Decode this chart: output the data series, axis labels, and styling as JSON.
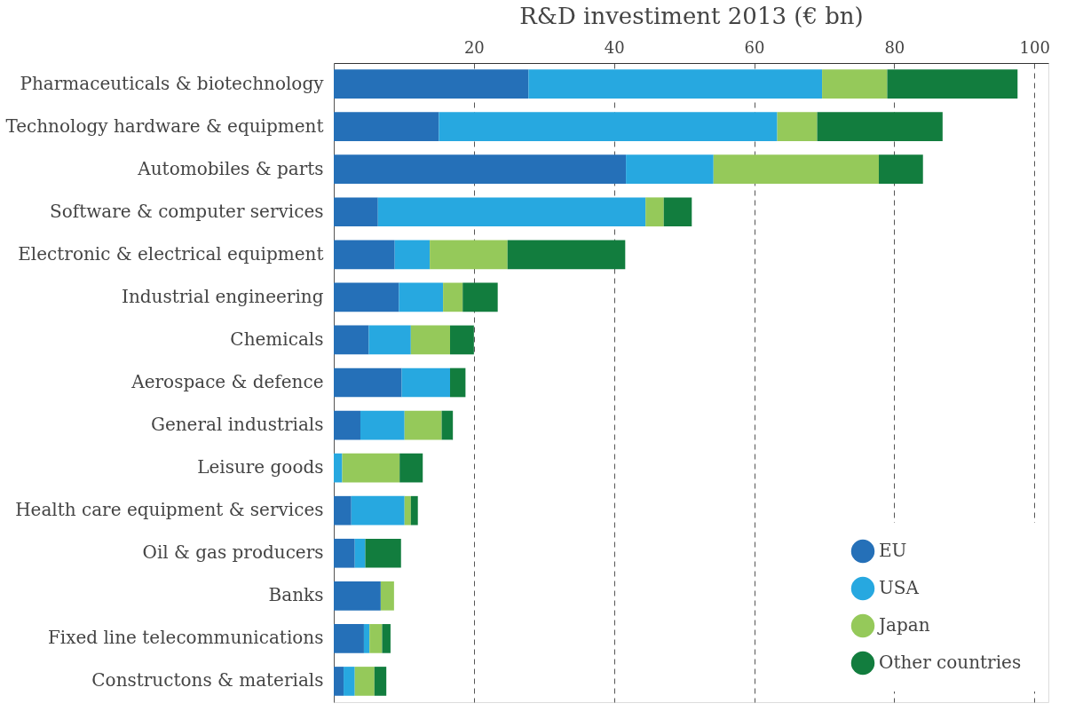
{
  "chart_data": {
    "type": "bar",
    "orientation": "horizontal",
    "stacked": true,
    "xlabel": "R&D investiment 2013 (€ bn)",
    "categories": [
      "Pharmaceuticals & biotechnology",
      "Technology hardware & equipment",
      "Automobiles & parts",
      "Software & computer services",
      "Electronic & electrical equipment",
      "Industrial engineering",
      "Chemicals",
      "Aerospace & defence",
      "General industrials",
      "Leisure goods",
      "Health care equipment & services",
      "Oil & gas producers",
      "Banks",
      "Fixed line telecommunications",
      "Constructons & materials"
    ],
    "series": [
      {
        "name": "EU",
        "color": "#2570b8",
        "values": [
          27.8,
          15.0,
          41.7,
          6.3,
          8.7,
          9.3,
          5.0,
          9.7,
          3.8,
          0,
          2.5,
          3.0,
          6.7,
          4.3,
          1.4
        ]
      },
      {
        "name": "USA",
        "color": "#27a8e0",
        "values": [
          41.9,
          48.3,
          12.5,
          38.2,
          5.0,
          6.3,
          6.0,
          6.9,
          6.3,
          1.2,
          7.6,
          1.5,
          0,
          0.8,
          1.6
        ]
      },
      {
        "name": "Japan",
        "color": "#95c95a",
        "values": [
          9.3,
          5.7,
          23.6,
          2.6,
          11.1,
          2.8,
          5.6,
          0,
          5.3,
          8.2,
          0.9,
          0,
          1.9,
          1.8,
          2.8
        ]
      },
      {
        "name": "Other countries",
        "color": "#127d3e",
        "values": [
          18.6,
          17.9,
          6.3,
          4.0,
          16.8,
          5.0,
          3.4,
          2.2,
          1.6,
          3.3,
          1.0,
          5.1,
          0,
          1.2,
          1.7
        ]
      }
    ],
    "xlim": [
      0,
      102
    ],
    "xticks": [
      20,
      40,
      60,
      80,
      100
    ],
    "grid": "x",
    "legend": "bottom right"
  }
}
